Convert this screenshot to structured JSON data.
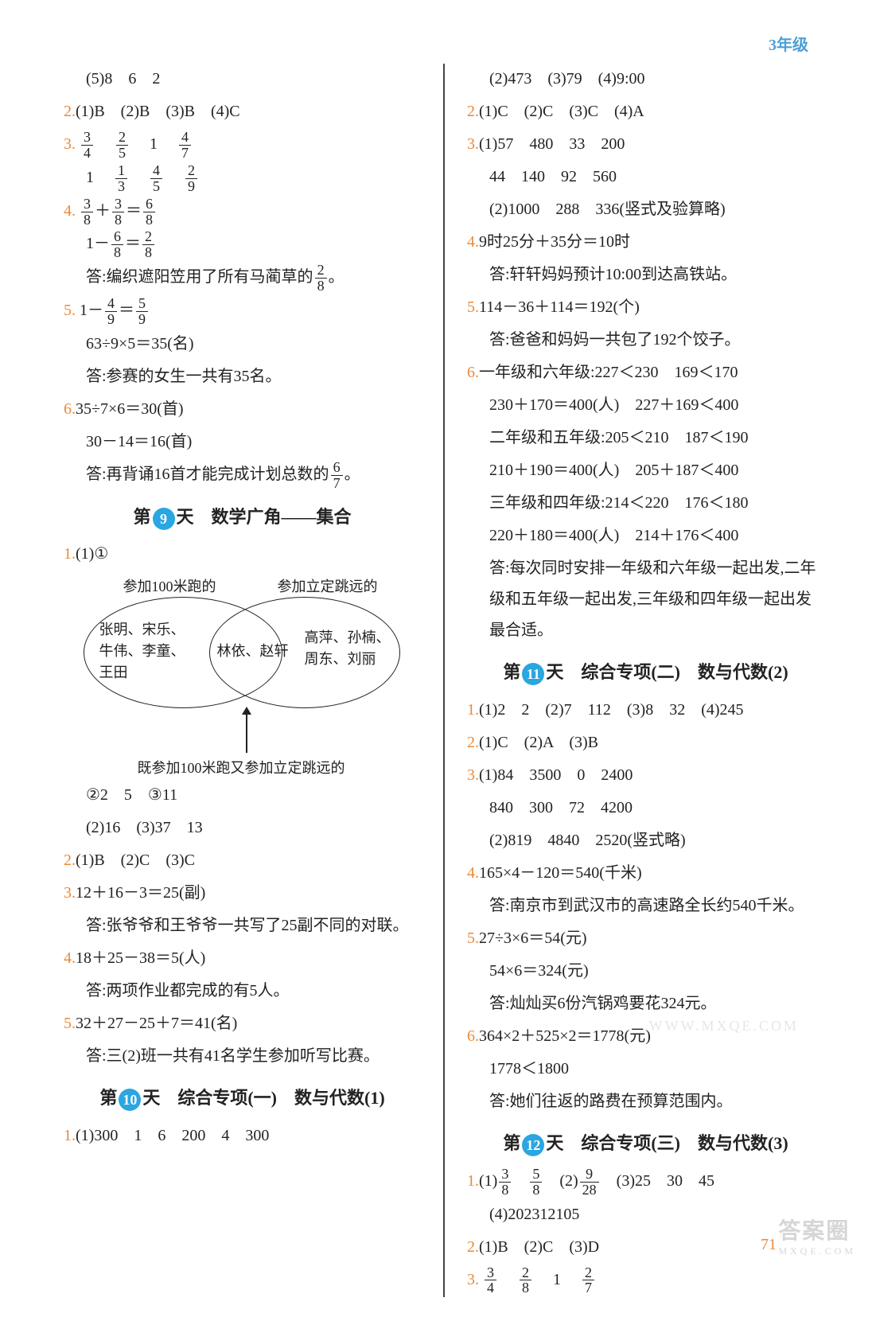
{
  "header": {
    "grade": "3年级"
  },
  "footer": {
    "page": "71",
    "watermark": "答案圈",
    "watermark_sub": "MXQE.COM",
    "wm2": "WWW.MXQE.COM"
  },
  "colors": {
    "accent": "#e98a3a",
    "blue": "#2aa6e0",
    "headerBlue": "#4aa0d8",
    "text": "#222"
  },
  "left": {
    "pre": [
      {
        "indent": true,
        "text": "(5)8　6　2"
      }
    ],
    "q2": {
      "num": "2.",
      "text": "(1)B　(2)B　(3)B　(4)C"
    },
    "q3": {
      "num": "3.",
      "row1": [
        [
          "3",
          "4"
        ],
        [
          "2",
          "5"
        ],
        "1",
        [
          "4",
          "7"
        ]
      ],
      "row2": [
        "1",
        [
          "1",
          "3"
        ],
        [
          "4",
          "5"
        ],
        [
          "2",
          "9"
        ]
      ]
    },
    "q4": {
      "num": "4.",
      "eq1_lhs1": [
        "3",
        "8"
      ],
      "eq1_lhs2": [
        "3",
        "8"
      ],
      "eq1_rhs": [
        "6",
        "8"
      ],
      "eq2_lhs": [
        "6",
        "8"
      ],
      "eq2_rhs": [
        "2",
        "8"
      ],
      "ans_pre": "答:编织遮阳笠用了所有马蔺草的",
      "ans_frac": [
        "2",
        "8"
      ],
      "ans_post": "。"
    },
    "q5": {
      "num": "5.",
      "eq_lhs": [
        "4",
        "9"
      ],
      "eq_rhs": [
        "5",
        "9"
      ],
      "calc": "63÷9×5＝35(名)",
      "ans": "答:参赛的女生一共有35名。"
    },
    "q6": {
      "num": "6.",
      "l1": "35÷7×6＝30(首)",
      "l2": "30－14＝16(首)",
      "ans_pre": "答:再背诵16首才能完成计划总数的",
      "ans_frac": [
        "6",
        "7"
      ],
      "ans_post": "。"
    },
    "sec9": {
      "title_pre": "第",
      "num": "9",
      "title_post": "天　数学广角——集合"
    },
    "s9q1": {
      "num": "1.",
      "a": "(1)①",
      "venn": {
        "topL": "参加100米跑的",
        "topR": "参加立定跳远的",
        "leftNames": "张明、宋乐、\n牛伟、李童、\n王田",
        "midNames": "林依、赵轩",
        "rightNames": "高萍、孙楠、\n周东、刘丽",
        "bottom": "既参加100米跑又参加立定跳远的"
      },
      "b": "②2　5　③11",
      "c": "(2)16　(3)37　13"
    },
    "s9q2": {
      "num": "2.",
      "text": "(1)B　(2)C　(3)C"
    },
    "s9q3": {
      "num": "3.",
      "l1": "12＋16－3＝25(副)",
      "ans": "答:张爷爷和王爷爷一共写了25副不同的对联。"
    },
    "s9q4": {
      "num": "4.",
      "l1": "18＋25－38＝5(人)",
      "ans": "答:两项作业都完成的有5人。"
    },
    "s9q5": {
      "num": "5.",
      "l1": "32＋27－25＋7＝41(名)",
      "ans": "答:三(2)班一共有41名学生参加听写比赛。"
    },
    "sec10": {
      "title_pre": "第",
      "num": "10",
      "title_post": "天　综合专项(一)　数与代数(1)"
    },
    "s10q1": {
      "num": "1.",
      "text": "(1)300　1　6　200　4　300"
    }
  },
  "right": {
    "pre": [
      {
        "indent": true,
        "text": "(2)473　(3)79　(4)9:00"
      }
    ],
    "q2": {
      "num": "2.",
      "text": "(1)C　(2)C　(3)C　(4)A"
    },
    "q3": {
      "num": "3.",
      "l1": "(1)57　480　33　200",
      "l2": "44　140　92　560",
      "l3": "(2)1000　288　336(竖式及验算略)"
    },
    "q4": {
      "num": "4.",
      "l1": "9时25分＋35分＝10时",
      "ans": "答:轩轩妈妈预计10:00到达高铁站。"
    },
    "q5": {
      "num": "5.",
      "l1": "114－36＋114＝192(个)",
      "ans": "答:爸爸和妈妈一共包了192个饺子。"
    },
    "q6": {
      "num": "6.",
      "l1": "一年级和六年级:227＜230　169＜170",
      "l2": "230＋170＝400(人)　227＋169＜400",
      "l3": "二年级和五年级:205＜210　187＜190",
      "l4": "210＋190＝400(人)　205＋187＜400",
      "l5": "三年级和四年级:214＜220　176＜180",
      "l6": "220＋180＝400(人)　214＋176＜400",
      "ans": "答:每次同时安排一年级和六年级一起出发,二年级和五年级一起出发,三年级和四年级一起出发最合适。"
    },
    "sec11": {
      "title_pre": "第",
      "num": "11",
      "title_post": "天　综合专项(二)　数与代数(2)"
    },
    "s11q1": {
      "num": "1.",
      "text": "(1)2　2　(2)7　112　(3)8　32　(4)245"
    },
    "s11q2": {
      "num": "2.",
      "text": "(1)C　(2)A　(3)B"
    },
    "s11q3": {
      "num": "3.",
      "l1": "(1)84　3500　0　2400",
      "l2": "840　300　72　4200",
      "l3": "(2)819　4840　2520(竖式略)"
    },
    "s11q4": {
      "num": "4.",
      "l1": "165×4－120＝540(千米)",
      "ans": "答:南京市到武汉市的高速路全长约540千米。"
    },
    "s11q5": {
      "num": "5.",
      "l1": "27÷3×6＝54(元)",
      "l2": "54×6＝324(元)",
      "ans": "答:灿灿买6份汽锅鸡要花324元。"
    },
    "s11q6": {
      "num": "6.",
      "l1": "364×2＋525×2＝1778(元)",
      "l2": "1778＜1800",
      "ans": "答:她们往返的路费在预算范围内。"
    },
    "sec12": {
      "title_pre": "第",
      "num": "12",
      "title_post": "天　综合专项(三)　数与代数(3)"
    },
    "s12q1": {
      "num": "1.",
      "part1_pre": "(1)",
      "f1": [
        "3",
        "8"
      ],
      "f2": [
        "5",
        "8"
      ],
      "part2_pre": "　(2)",
      "f3": [
        "9",
        "28"
      ],
      "part3": "　(3)25　30　45",
      "l2": "(4)202312105"
    },
    "s12q2": {
      "num": "2.",
      "text": "(1)B　(2)C　(3)D"
    },
    "s12q3": {
      "num": "3.",
      "fr": [
        [
          "3",
          "4"
        ],
        [
          "2",
          "8"
        ],
        "1",
        [
          "2",
          "7"
        ]
      ]
    }
  }
}
